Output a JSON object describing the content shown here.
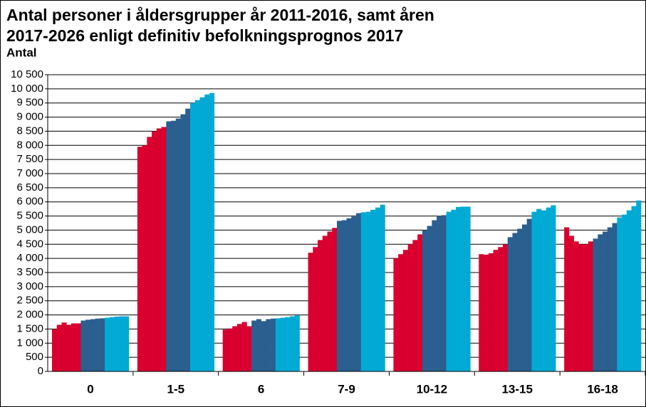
{
  "chart_data": {
    "type": "bar",
    "title": "Antal personer i åldersgrupper år 2011-2016, samt åren 2017-2026 enligt definitiv befolkningsprognos 2017",
    "y_label": "Antal",
    "categories": [
      "0",
      "1-5",
      "6",
      "7-9",
      "10-12",
      "13-15",
      "16-18"
    ],
    "series": [
      {
        "color": "#d9002f",
        "values": [
          1500,
          7950,
          1480,
          4200,
          4000,
          4150,
          5100
        ]
      },
      {
        "color": "#d9002f",
        "values": [
          1650,
          8000,
          1520,
          4400,
          4150,
          4130,
          4800
        ]
      },
      {
        "color": "#d9002f",
        "values": [
          1730,
          8300,
          1600,
          4650,
          4300,
          4180,
          4600
        ]
      },
      {
        "color": "#d9002f",
        "values": [
          1650,
          8500,
          1680,
          4800,
          4500,
          4300,
          4500
        ]
      },
      {
        "color": "#d9002f",
        "values": [
          1700,
          8600,
          1750,
          4950,
          4650,
          4400,
          4500
        ]
      },
      {
        "color": "#d9002f",
        "values": [
          1700,
          8650,
          1600,
          5080,
          4850,
          4500,
          4600
        ]
      },
      {
        "color": "#2a5f8f",
        "values": [
          1800,
          8850,
          1800,
          5330,
          5000,
          4750,
          4700
        ]
      },
      {
        "color": "#2a5f8f",
        "values": [
          1830,
          8870,
          1850,
          5350,
          5150,
          4900,
          4850
        ]
      },
      {
        "color": "#2a5f8f",
        "values": [
          1850,
          8950,
          1780,
          5420,
          5350,
          5050,
          4950
        ]
      },
      {
        "color": "#2a5f8f",
        "values": [
          1870,
          9100,
          1850,
          5480,
          5500,
          5200,
          5100
        ]
      },
      {
        "color": "#2a5f8f",
        "values": [
          1880,
          9300,
          1870,
          5600,
          5530,
          5400,
          5250
        ]
      },
      {
        "color": "#00aad4",
        "values": [
          1900,
          9500,
          1880,
          5630,
          5650,
          5650,
          5450
        ]
      },
      {
        "color": "#00aad4",
        "values": [
          1920,
          9600,
          1900,
          5650,
          5720,
          5750,
          5550
        ]
      },
      {
        "color": "#00aad4",
        "values": [
          1940,
          9700,
          1920,
          5720,
          5820,
          5700,
          5700
        ]
      },
      {
        "color": "#00aad4",
        "values": [
          1950,
          9800,
          1950,
          5800,
          5830,
          5800,
          5850
        ]
      },
      {
        "color": "#00aad4",
        "values": [
          1950,
          9850,
          1980,
          5900,
          5830,
          5880,
          6050
        ]
      }
    ],
    "ylim": [
      0,
      10500
    ],
    "yticks": [
      0,
      500,
      {
        "value": 1000,
        "label": "1 000"
      },
      {
        "value": 1500,
        "label": "1 500"
      },
      {
        "value": 2000,
        "label": "2 000"
      },
      {
        "value": 2500,
        "label": "2 500"
      },
      {
        "value": 3000,
        "label": "3 000"
      },
      {
        "value": 3500,
        "label": "3 500"
      },
      {
        "value": 4000,
        "label": "4 000"
      },
      {
        "value": 4500,
        "label": "4 500"
      },
      {
        "value": 5000,
        "label": "5 000"
      },
      {
        "value": 5500,
        "label": "5 500"
      },
      {
        "value": 6000,
        "label": "6 000"
      },
      {
        "value": 6500,
        "label": "6 500"
      },
      {
        "value": 7000,
        "label": "7 000"
      },
      {
        "value": 7500,
        "label": "7 500"
      },
      {
        "value": 8000,
        "label": "8 000"
      },
      {
        "value": 8500,
        "label": "8 500"
      },
      {
        "value": 9000,
        "label": "9 000"
      },
      {
        "value": 9500,
        "label": "9 500"
      },
      {
        "value": 10000,
        "label": "10 000"
      },
      {
        "value": 10500,
        "label": "10 500"
      }
    ],
    "grid": true
  }
}
